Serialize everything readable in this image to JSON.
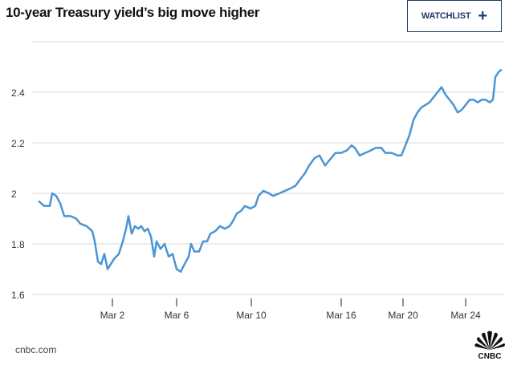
{
  "header": {
    "title": "10-year Treasury yield’s big move higher",
    "watchlist_label": "WATCHLIST",
    "watchlist_icon": "plus-icon"
  },
  "footer": {
    "source": "cnbc.com",
    "logo_text": "CNBC"
  },
  "colors": {
    "line": "#4a95d6",
    "grid": "#d9d9d9",
    "button": "#1c3a6b"
  },
  "chart_data": {
    "type": "line",
    "title": "10-year Treasury yield’s big move higher",
    "xlabel": "",
    "ylabel": "",
    "x_unit": "day of March (negative = late February)",
    "xlim": [
      -2.6,
      26.4
    ],
    "ylim": [
      1.6,
      2.6
    ],
    "yticks": [
      {
        "v": 1.6,
        "label": "1.6"
      },
      {
        "v": 1.8,
        "label": "1.8"
      },
      {
        "v": 2.0,
        "label": "2"
      },
      {
        "v": 2.2,
        "label": "2.2"
      },
      {
        "v": 2.4,
        "label": "2.4"
      },
      {
        "v": 2.6,
        "label": ""
      }
    ],
    "xticks": [
      {
        "v": 2,
        "label": "Mar 2"
      },
      {
        "v": 6,
        "label": "Mar 6"
      },
      {
        "v": 10.65,
        "label": "Mar 10"
      },
      {
        "v": 16.25,
        "label": "Mar 16"
      },
      {
        "v": 20.1,
        "label": "Mar 20"
      },
      {
        "v": 24,
        "label": "Mar 24"
      }
    ],
    "grid": true,
    "series": [
      {
        "name": "10-year Treasury yield",
        "points": [
          [
            -2.6,
            1.97
          ],
          [
            -2.25,
            1.95
          ],
          [
            -1.9,
            1.95
          ],
          [
            -1.75,
            2.0
          ],
          [
            -1.5,
            1.99
          ],
          [
            -1.25,
            1.96
          ],
          [
            -1.0,
            1.91
          ],
          [
            -0.6,
            1.91
          ],
          [
            -0.25,
            1.9
          ],
          [
            0,
            1.88
          ],
          [
            0.4,
            1.87
          ],
          [
            0.75,
            1.85
          ],
          [
            0.9,
            1.81
          ],
          [
            1.1,
            1.73
          ],
          [
            1.3,
            1.72
          ],
          [
            1.5,
            1.76
          ],
          [
            1.7,
            1.7
          ],
          [
            1.9,
            1.72
          ],
          [
            2.1,
            1.74
          ],
          [
            2.4,
            1.76
          ],
          [
            2.65,
            1.81
          ],
          [
            2.85,
            1.86
          ],
          [
            3.0,
            1.91
          ],
          [
            3.2,
            1.84
          ],
          [
            3.4,
            1.87
          ],
          [
            3.6,
            1.86
          ],
          [
            3.8,
            1.87
          ],
          [
            4.0,
            1.85
          ],
          [
            4.2,
            1.86
          ],
          [
            4.4,
            1.83
          ],
          [
            4.6,
            1.75
          ],
          [
            4.75,
            1.81
          ],
          [
            5.0,
            1.78
          ],
          [
            5.25,
            1.8
          ],
          [
            5.5,
            1.75
          ],
          [
            5.75,
            1.76
          ],
          [
            6.0,
            1.7
          ],
          [
            6.25,
            1.69
          ],
          [
            6.5,
            1.72
          ],
          [
            6.75,
            1.75
          ],
          [
            6.9,
            1.8
          ],
          [
            7.1,
            1.77
          ],
          [
            7.4,
            1.77
          ],
          [
            7.65,
            1.81
          ],
          [
            7.9,
            1.81
          ],
          [
            8.1,
            1.84
          ],
          [
            8.4,
            1.85
          ],
          [
            8.7,
            1.87
          ],
          [
            9.0,
            1.86
          ],
          [
            9.3,
            1.87
          ],
          [
            9.5,
            1.89
          ],
          [
            9.75,
            1.92
          ],
          [
            10.0,
            1.93
          ],
          [
            10.25,
            1.95
          ],
          [
            10.6,
            1.94
          ],
          [
            10.9,
            1.95
          ],
          [
            11.1,
            1.99
          ],
          [
            11.4,
            2.01
          ],
          [
            11.75,
            2.0
          ],
          [
            12.0,
            1.99
          ],
          [
            12.4,
            2.0
          ],
          [
            12.75,
            2.01
          ],
          [
            13.1,
            2.02
          ],
          [
            13.4,
            2.03
          ],
          [
            13.75,
            2.06
          ],
          [
            14.0,
            2.08
          ],
          [
            14.25,
            2.11
          ],
          [
            14.6,
            2.14
          ],
          [
            14.9,
            2.15
          ],
          [
            15.25,
            2.11
          ],
          [
            15.5,
            2.13
          ],
          [
            15.9,
            2.16
          ],
          [
            16.25,
            2.16
          ],
          [
            16.6,
            2.17
          ],
          [
            16.9,
            2.19
          ],
          [
            17.1,
            2.18
          ],
          [
            17.4,
            2.15
          ],
          [
            17.75,
            2.16
          ],
          [
            18.1,
            2.17
          ],
          [
            18.4,
            2.18
          ],
          [
            18.75,
            2.18
          ],
          [
            19.0,
            2.16
          ],
          [
            19.4,
            2.16
          ],
          [
            19.75,
            2.15
          ],
          [
            20.0,
            2.15
          ],
          [
            20.25,
            2.19
          ],
          [
            20.5,
            2.23
          ],
          [
            20.75,
            2.29
          ],
          [
            21.0,
            2.32
          ],
          [
            21.25,
            2.34
          ],
          [
            21.5,
            2.35
          ],
          [
            21.75,
            2.36
          ],
          [
            22.0,
            2.38
          ],
          [
            22.25,
            2.4
          ],
          [
            22.5,
            2.42
          ],
          [
            22.75,
            2.39
          ],
          [
            23.0,
            2.37
          ],
          [
            23.25,
            2.35
          ],
          [
            23.5,
            2.32
          ],
          [
            23.75,
            2.33
          ],
          [
            24.0,
            2.35
          ],
          [
            24.25,
            2.37
          ],
          [
            24.5,
            2.37
          ],
          [
            24.75,
            2.36
          ],
          [
            25.0,
            2.37
          ],
          [
            25.25,
            2.37
          ],
          [
            25.5,
            2.36
          ],
          [
            25.7,
            2.37
          ],
          [
            25.85,
            2.46
          ],
          [
            26.05,
            2.48
          ],
          [
            26.25,
            2.49
          ]
        ]
      }
    ]
  }
}
